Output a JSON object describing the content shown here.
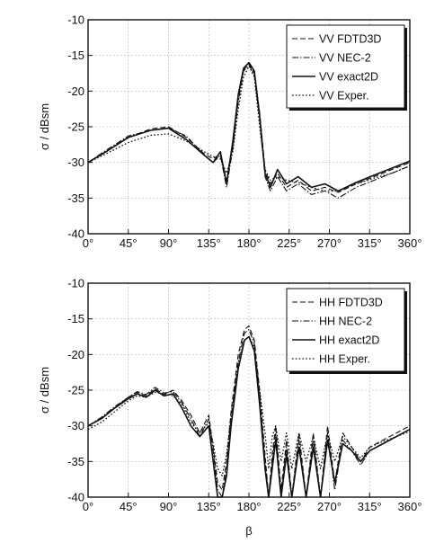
{
  "chart_data": [
    {
      "type": "line",
      "title": "",
      "xlabel": "",
      "ylabel": "σ / dBsm",
      "xlim": [
        0,
        360
      ],
      "ylim": [
        -40,
        -10
      ],
      "xticks": [
        0,
        45,
        90,
        135,
        180,
        225,
        270,
        315,
        360
      ],
      "xtick_labels": [
        "0°",
        "45°",
        "90°",
        "135°",
        "180°",
        "225°",
        "270°",
        "315°",
        "360°"
      ],
      "yticks": [
        -10,
        -15,
        -20,
        -25,
        -30,
        -35,
        -40
      ],
      "ytick_labels": [
        "-10",
        "-15",
        "-20",
        "-25",
        "-30",
        "-35",
        "-40"
      ],
      "grid": true,
      "legend_position": "top-right",
      "series": [
        {
          "name": "VV FDTD3D",
          "dash": "dashed",
          "x": [
            0,
            20,
            45,
            70,
            90,
            110,
            130,
            140,
            148,
            155,
            162,
            168,
            174,
            180,
            186,
            192,
            198,
            204,
            212,
            222,
            235,
            250,
            265,
            280,
            300,
            320,
            340,
            360
          ],
          "y": [
            -30,
            -28.5,
            -26.5,
            -25.3,
            -25,
            -26.5,
            -28.8,
            -29.5,
            -28.8,
            -32.5,
            -27.5,
            -21,
            -17,
            -16.2,
            -17.5,
            -23,
            -31,
            -33,
            -31.5,
            -33.5,
            -32.5,
            -34,
            -33.5,
            -34.2,
            -33,
            -32,
            -31,
            -30
          ]
        },
        {
          "name": "VV NEC-2",
          "dash": "dash-dot",
          "x": [
            0,
            20,
            45,
            70,
            90,
            110,
            130,
            140,
            148,
            155,
            162,
            168,
            174,
            180,
            186,
            192,
            198,
            204,
            212,
            222,
            235,
            250,
            265,
            280,
            300,
            320,
            340,
            360
          ],
          "y": [
            -30,
            -28.3,
            -26.3,
            -25.5,
            -25.2,
            -26.3,
            -29,
            -30,
            -29,
            -33.5,
            -28,
            -21.5,
            -17.2,
            -16.3,
            -17.8,
            -24,
            -32,
            -34,
            -32,
            -34,
            -33,
            -34.5,
            -34,
            -35,
            -33.5,
            -32.5,
            -31.5,
            -30.5
          ]
        },
        {
          "name": "VV exact2D",
          "dash": "solid",
          "x": [
            0,
            20,
            45,
            70,
            90,
            110,
            130,
            140,
            148,
            155,
            162,
            168,
            174,
            180,
            186,
            192,
            198,
            204,
            212,
            222,
            235,
            250,
            265,
            280,
            300,
            320,
            340,
            360
          ],
          "y": [
            -30,
            -28.5,
            -26.5,
            -25.5,
            -25.2,
            -26.8,
            -29,
            -30,
            -28.5,
            -33,
            -27,
            -20.5,
            -16.8,
            -16,
            -17.2,
            -23.5,
            -31.5,
            -33.5,
            -31,
            -33,
            -32,
            -33.5,
            -33,
            -34,
            -32.8,
            -31.8,
            -30.8,
            -29.8
          ]
        },
        {
          "name": "VV Exper.",
          "dash": "dotted",
          "x": [
            0,
            20,
            45,
            70,
            90,
            110,
            130,
            140,
            148,
            155,
            162,
            168,
            174,
            180,
            186,
            192,
            198,
            204,
            212,
            222,
            235,
            250,
            265,
            280,
            300,
            320,
            340,
            360
          ],
          "y": [
            -30,
            -28.8,
            -27.2,
            -26.2,
            -26,
            -27,
            -28.5,
            -29.2,
            -29.5,
            -31.5,
            -28.5,
            -22.5,
            -18,
            -16.5,
            -18,
            -25,
            -31,
            -32.5,
            -32,
            -32.5,
            -32.8,
            -33.5,
            -34,
            -34,
            -33,
            -32.2,
            -31.5,
            -30.5
          ]
        }
      ]
    },
    {
      "type": "line",
      "title": "",
      "xlabel": "β",
      "ylabel": "σ / dBsm",
      "xlim": [
        0,
        360
      ],
      "ylim": [
        -40,
        -10
      ],
      "xticks": [
        0,
        45,
        90,
        135,
        180,
        225,
        270,
        315,
        360
      ],
      "xtick_labels": [
        "0°",
        "45°",
        "90°",
        "135°",
        "180°",
        "225°",
        "270°",
        "315°",
        "360°"
      ],
      "yticks": [
        -10,
        -15,
        -20,
        -25,
        -30,
        -35,
        -40
      ],
      "ytick_labels": [
        "-10",
        "-15",
        "-20",
        "-25",
        "-30",
        "-35",
        "-40"
      ],
      "grid": true,
      "legend_position": "top-right",
      "series": [
        {
          "name": "HH FDTD3D",
          "dash": "dashed",
          "x": [
            0,
            15,
            30,
            45,
            55,
            65,
            75,
            85,
            95,
            105,
            115,
            125,
            135,
            140,
            145,
            150,
            155,
            160,
            168,
            175,
            180,
            186,
            192,
            198,
            202,
            206,
            210,
            216,
            222,
            228,
            236,
            244,
            252,
            260,
            268,
            276,
            285,
            295,
            305,
            315,
            330,
            345,
            360
          ],
          "y": [
            -30,
            -29,
            -27.5,
            -26,
            -25.3,
            -25.8,
            -24.8,
            -25.6,
            -25,
            -26.5,
            -28.5,
            -31,
            -28.5,
            -33,
            -38,
            -39,
            -35,
            -28,
            -20,
            -16.5,
            -16,
            -18,
            -25,
            -34,
            -40,
            -34,
            -30,
            -39,
            -32,
            -40,
            -31,
            -40,
            -31,
            -40,
            -30,
            -38,
            -31,
            -33,
            -35,
            -33,
            -32,
            -31,
            -30
          ]
        },
        {
          "name": "HH NEC-2",
          "dash": "dash-dot",
          "x": [
            0,
            15,
            30,
            45,
            55,
            65,
            75,
            85,
            95,
            105,
            115,
            125,
            135,
            140,
            145,
            150,
            155,
            160,
            168,
            175,
            180,
            186,
            192,
            198,
            202,
            206,
            210,
            216,
            222,
            228,
            236,
            244,
            252,
            260,
            268,
            276,
            285,
            295,
            305,
            315,
            330,
            345,
            360
          ],
          "y": [
            -30,
            -28.8,
            -27.3,
            -26,
            -25.2,
            -25.6,
            -24.6,
            -25.4,
            -25.2,
            -26.8,
            -29,
            -31.5,
            -29,
            -33.5,
            -39,
            -40,
            -36,
            -29,
            -21,
            -17,
            -16.5,
            -18.5,
            -26,
            -35,
            -40,
            -35,
            -31,
            -40,
            -33,
            -40,
            -32,
            -40,
            -32,
            -40,
            -31,
            -39,
            -32,
            -33.5,
            -35.5,
            -33.5,
            -32.5,
            -31.5,
            -30.5
          ]
        },
        {
          "name": "HH exact2D",
          "dash": "solid",
          "x": [
            0,
            15,
            30,
            45,
            55,
            65,
            75,
            85,
            95,
            105,
            115,
            125,
            135,
            140,
            145,
            150,
            155,
            160,
            168,
            175,
            180,
            186,
            192,
            198,
            202,
            206,
            210,
            216,
            222,
            228,
            236,
            244,
            252,
            260,
            268,
            276,
            285,
            295,
            305,
            315,
            330,
            345,
            360
          ],
          "y": [
            -30,
            -29,
            -27.5,
            -26.2,
            -25.5,
            -26,
            -25,
            -25.8,
            -25.5,
            -27.5,
            -30,
            -31.5,
            -30,
            -35,
            -40,
            -40,
            -37,
            -30,
            -22,
            -18,
            -17.5,
            -19.5,
            -27,
            -36,
            -40,
            -36,
            -32,
            -40,
            -34,
            -40,
            -33,
            -40,
            -33,
            -40,
            -32,
            -38,
            -32.5,
            -33.5,
            -35,
            -33.5,
            -32.5,
            -31.5,
            -30.5
          ]
        },
        {
          "name": "HH Exper.",
          "dash": "dotted",
          "x": [
            0,
            15,
            30,
            45,
            55,
            65,
            75,
            85,
            95,
            105,
            115,
            125,
            135,
            140,
            145,
            150,
            155,
            160,
            168,
            175,
            180,
            186,
            192,
            198,
            202,
            206,
            210,
            216,
            222,
            228,
            236,
            244,
            252,
            260,
            268,
            276,
            285,
            295,
            305,
            315,
            330,
            345,
            360
          ],
          "y": [
            -30.5,
            -29.5,
            -28,
            -26.5,
            -25.8,
            -26,
            -25.3,
            -25.5,
            -25.8,
            -27,
            -29.5,
            -31,
            -29.5,
            -32.5,
            -36,
            -37,
            -34,
            -28.5,
            -21.5,
            -18,
            -17.5,
            -19,
            -25,
            -31,
            -36,
            -31.5,
            -30,
            -35,
            -31,
            -36,
            -31,
            -35,
            -31.5,
            -36,
            -31,
            -35,
            -31.5,
            -33,
            -34.5,
            -33,
            -32.2,
            -31.5,
            -30.8
          ]
        }
      ]
    }
  ]
}
